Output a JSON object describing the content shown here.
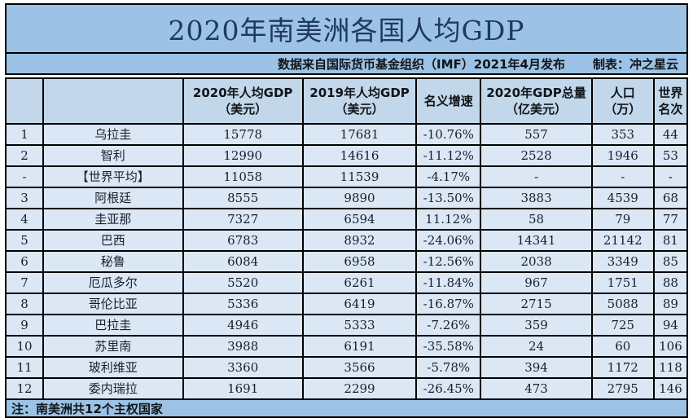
{
  "title": "2020年南美洲各国人均GDP",
  "subtitle": {
    "source": "数据来自国际货币基金组织（IMF）2021年4月发布",
    "credit": "制表：冲之星云"
  },
  "note": "注：南美洲共12个主权国家",
  "colors": {
    "banner_blue": "#9cc2e5",
    "header_blue": "#c3d7eb",
    "row_blue": "#dbe7f4",
    "title_text": "#1f3864",
    "border": "#000000"
  },
  "table": {
    "col_keys": [
      "rank",
      "country",
      "gdp_per_capita_2020",
      "gdp_per_capita_2019",
      "nominal_growth",
      "gdp_total_2020",
      "population_10k",
      "world_rank"
    ],
    "headers_display": [
      "",
      "",
      "2020年人均GDP\n（美元）",
      "2019年人均GDP\n（美元）",
      "名义增速",
      "2020年GDP总量\n（亿美元）",
      "人口\n（万）",
      "世界\n名次"
    ]
  },
  "chart_data": {
    "type": "table",
    "title": "2020年南美洲各国人均GDP",
    "columns": [
      "",
      "",
      "2020年人均GDP（美元）",
      "2019年人均GDP（美元）",
      "名义增速",
      "2020年GDP总量（亿美元）",
      "人口（万）",
      "世界名次"
    ],
    "rows": [
      [
        "1",
        "乌拉圭",
        "15778",
        "17681",
        "-10.76%",
        "557",
        "353",
        "44"
      ],
      [
        "2",
        "智利",
        "12990",
        "14616",
        "-11.12%",
        "2528",
        "1946",
        "53"
      ],
      [
        "-",
        "【世界平均】",
        "11058",
        "11539",
        "-4.17%",
        "-",
        "-",
        "-"
      ],
      [
        "3",
        "阿根廷",
        "8555",
        "9890",
        "-13.50%",
        "3883",
        "4539",
        "68"
      ],
      [
        "4",
        "圭亚那",
        "7327",
        "6594",
        "11.12%",
        "58",
        "79",
        "77"
      ],
      [
        "5",
        "巴西",
        "6783",
        "8932",
        "-24.06%",
        "14341",
        "21142",
        "81"
      ],
      [
        "6",
        "秘鲁",
        "6084",
        "6958",
        "-12.56%",
        "2038",
        "3349",
        "85"
      ],
      [
        "7",
        "厄瓜多尔",
        "5520",
        "6261",
        "-11.84%",
        "967",
        "1751",
        "88"
      ],
      [
        "8",
        "哥伦比亚",
        "5336",
        "6419",
        "-16.87%",
        "2715",
        "5088",
        "89"
      ],
      [
        "9",
        "巴拉圭",
        "4946",
        "5333",
        "-7.26%",
        "359",
        "725",
        "94"
      ],
      [
        "10",
        "苏里南",
        "3988",
        "6191",
        "-35.58%",
        "24",
        "60",
        "106"
      ],
      [
        "11",
        "玻利维亚",
        "3360",
        "3566",
        "-5.78%",
        "394",
        "1172",
        "118"
      ],
      [
        "12",
        "委内瑞拉",
        "1691",
        "2299",
        "-26.45%",
        "473",
        "2795",
        "146"
      ]
    ]
  }
}
